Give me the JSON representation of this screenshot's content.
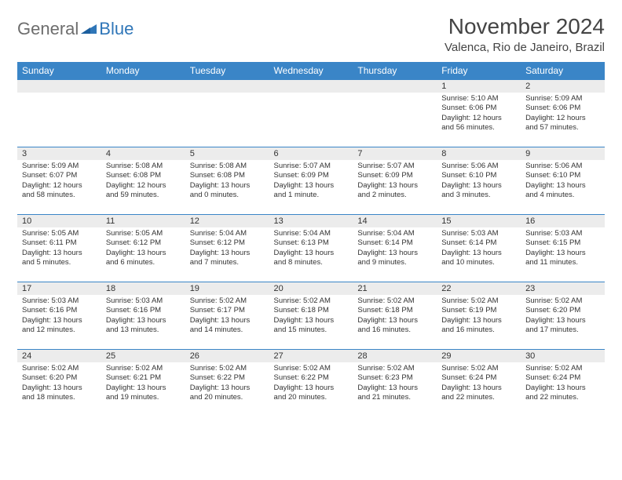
{
  "logo": {
    "word1": "General",
    "word2": "Blue"
  },
  "title": "November 2024",
  "location": "Valenca, Rio de Janeiro, Brazil",
  "colors": {
    "header_bg": "#3a85c7",
    "header_text": "#ffffff",
    "daynum_bg": "#ececec",
    "border": "#3a85c7",
    "logo_gray": "#6d6d6d",
    "logo_blue": "#2f76b8"
  },
  "weekdays": [
    "Sunday",
    "Monday",
    "Tuesday",
    "Wednesday",
    "Thursday",
    "Friday",
    "Saturday"
  ],
  "weeks": [
    [
      {
        "day": "",
        "lines": [
          "",
          "",
          "",
          ""
        ]
      },
      {
        "day": "",
        "lines": [
          "",
          "",
          "",
          ""
        ]
      },
      {
        "day": "",
        "lines": [
          "",
          "",
          "",
          ""
        ]
      },
      {
        "day": "",
        "lines": [
          "",
          "",
          "",
          ""
        ]
      },
      {
        "day": "",
        "lines": [
          "",
          "",
          "",
          ""
        ]
      },
      {
        "day": "1",
        "lines": [
          "Sunrise: 5:10 AM",
          "Sunset: 6:06 PM",
          "Daylight: 12 hours",
          "and 56 minutes."
        ]
      },
      {
        "day": "2",
        "lines": [
          "Sunrise: 5:09 AM",
          "Sunset: 6:06 PM",
          "Daylight: 12 hours",
          "and 57 minutes."
        ]
      }
    ],
    [
      {
        "day": "3",
        "lines": [
          "Sunrise: 5:09 AM",
          "Sunset: 6:07 PM",
          "Daylight: 12 hours",
          "and 58 minutes."
        ]
      },
      {
        "day": "4",
        "lines": [
          "Sunrise: 5:08 AM",
          "Sunset: 6:08 PM",
          "Daylight: 12 hours",
          "and 59 minutes."
        ]
      },
      {
        "day": "5",
        "lines": [
          "Sunrise: 5:08 AM",
          "Sunset: 6:08 PM",
          "Daylight: 13 hours",
          "and 0 minutes."
        ]
      },
      {
        "day": "6",
        "lines": [
          "Sunrise: 5:07 AM",
          "Sunset: 6:09 PM",
          "Daylight: 13 hours",
          "and 1 minute."
        ]
      },
      {
        "day": "7",
        "lines": [
          "Sunrise: 5:07 AM",
          "Sunset: 6:09 PM",
          "Daylight: 13 hours",
          "and 2 minutes."
        ]
      },
      {
        "day": "8",
        "lines": [
          "Sunrise: 5:06 AM",
          "Sunset: 6:10 PM",
          "Daylight: 13 hours",
          "and 3 minutes."
        ]
      },
      {
        "day": "9",
        "lines": [
          "Sunrise: 5:06 AM",
          "Sunset: 6:10 PM",
          "Daylight: 13 hours",
          "and 4 minutes."
        ]
      }
    ],
    [
      {
        "day": "10",
        "lines": [
          "Sunrise: 5:05 AM",
          "Sunset: 6:11 PM",
          "Daylight: 13 hours",
          "and 5 minutes."
        ]
      },
      {
        "day": "11",
        "lines": [
          "Sunrise: 5:05 AM",
          "Sunset: 6:12 PM",
          "Daylight: 13 hours",
          "and 6 minutes."
        ]
      },
      {
        "day": "12",
        "lines": [
          "Sunrise: 5:04 AM",
          "Sunset: 6:12 PM",
          "Daylight: 13 hours",
          "and 7 minutes."
        ]
      },
      {
        "day": "13",
        "lines": [
          "Sunrise: 5:04 AM",
          "Sunset: 6:13 PM",
          "Daylight: 13 hours",
          "and 8 minutes."
        ]
      },
      {
        "day": "14",
        "lines": [
          "Sunrise: 5:04 AM",
          "Sunset: 6:14 PM",
          "Daylight: 13 hours",
          "and 9 minutes."
        ]
      },
      {
        "day": "15",
        "lines": [
          "Sunrise: 5:03 AM",
          "Sunset: 6:14 PM",
          "Daylight: 13 hours",
          "and 10 minutes."
        ]
      },
      {
        "day": "16",
        "lines": [
          "Sunrise: 5:03 AM",
          "Sunset: 6:15 PM",
          "Daylight: 13 hours",
          "and 11 minutes."
        ]
      }
    ],
    [
      {
        "day": "17",
        "lines": [
          "Sunrise: 5:03 AM",
          "Sunset: 6:16 PM",
          "Daylight: 13 hours",
          "and 12 minutes."
        ]
      },
      {
        "day": "18",
        "lines": [
          "Sunrise: 5:03 AM",
          "Sunset: 6:16 PM",
          "Daylight: 13 hours",
          "and 13 minutes."
        ]
      },
      {
        "day": "19",
        "lines": [
          "Sunrise: 5:02 AM",
          "Sunset: 6:17 PM",
          "Daylight: 13 hours",
          "and 14 minutes."
        ]
      },
      {
        "day": "20",
        "lines": [
          "Sunrise: 5:02 AM",
          "Sunset: 6:18 PM",
          "Daylight: 13 hours",
          "and 15 minutes."
        ]
      },
      {
        "day": "21",
        "lines": [
          "Sunrise: 5:02 AM",
          "Sunset: 6:18 PM",
          "Daylight: 13 hours",
          "and 16 minutes."
        ]
      },
      {
        "day": "22",
        "lines": [
          "Sunrise: 5:02 AM",
          "Sunset: 6:19 PM",
          "Daylight: 13 hours",
          "and 16 minutes."
        ]
      },
      {
        "day": "23",
        "lines": [
          "Sunrise: 5:02 AM",
          "Sunset: 6:20 PM",
          "Daylight: 13 hours",
          "and 17 minutes."
        ]
      }
    ],
    [
      {
        "day": "24",
        "lines": [
          "Sunrise: 5:02 AM",
          "Sunset: 6:20 PM",
          "Daylight: 13 hours",
          "and 18 minutes."
        ]
      },
      {
        "day": "25",
        "lines": [
          "Sunrise: 5:02 AM",
          "Sunset: 6:21 PM",
          "Daylight: 13 hours",
          "and 19 minutes."
        ]
      },
      {
        "day": "26",
        "lines": [
          "Sunrise: 5:02 AM",
          "Sunset: 6:22 PM",
          "Daylight: 13 hours",
          "and 20 minutes."
        ]
      },
      {
        "day": "27",
        "lines": [
          "Sunrise: 5:02 AM",
          "Sunset: 6:22 PM",
          "Daylight: 13 hours",
          "and 20 minutes."
        ]
      },
      {
        "day": "28",
        "lines": [
          "Sunrise: 5:02 AM",
          "Sunset: 6:23 PM",
          "Daylight: 13 hours",
          "and 21 minutes."
        ]
      },
      {
        "day": "29",
        "lines": [
          "Sunrise: 5:02 AM",
          "Sunset: 6:24 PM",
          "Daylight: 13 hours",
          "and 22 minutes."
        ]
      },
      {
        "day": "30",
        "lines": [
          "Sunrise: 5:02 AM",
          "Sunset: 6:24 PM",
          "Daylight: 13 hours",
          "and 22 minutes."
        ]
      }
    ]
  ]
}
